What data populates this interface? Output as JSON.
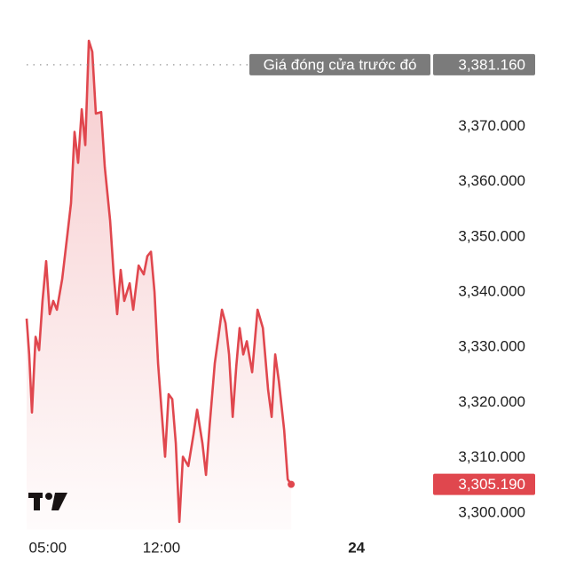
{
  "chart_data": {
    "type": "line",
    "x": [
      3.7,
      3.86,
      4.03,
      4.25,
      4.47,
      4.68,
      4.9,
      5.12,
      5.34,
      5.56,
      5.89,
      6.21,
      6.43,
      6.65,
      6.87,
      7.09,
      7.31,
      7.53,
      7.74,
      7.96,
      8.29,
      8.51,
      8.84,
      9.06,
      9.27,
      9.49,
      9.71,
      10.04,
      10.26,
      10.59,
      10.91,
      11.13,
      11.35,
      11.57,
      11.79,
      12.01,
      12.22,
      12.44,
      12.66,
      12.88,
      13.1,
      13.32,
      13.65,
      13.97,
      14.19,
      14.52,
      14.74,
      14.96,
      15.28,
      15.5,
      15.72,
      15.94,
      16.16,
      16.38,
      16.6,
      16.81,
      17.03,
      17.25,
      17.58,
      17.91,
      18.24,
      18.56,
      18.78,
      19.0,
      19.22,
      19.55,
      19.77,
      19.98
    ],
    "series": [
      {
        "color": "#e0474e",
        "values": [
          3335.2,
          3328.7,
          3318.2,
          3331.9,
          3329.5,
          3338.4,
          3345.6,
          3336.0,
          3338.4,
          3336.8,
          3342.4,
          3350.5,
          3356.1,
          3369.0,
          3363.4,
          3373.1,
          3366.6,
          3385.5,
          3383.5,
          3372.3,
          3372.6,
          3362.6,
          3352.9,
          3343.2,
          3336.0,
          3344.0,
          3338.4,
          3341.6,
          3336.8,
          3344.8,
          3343.2,
          3346.5,
          3347.3,
          3340.0,
          3327.1,
          3318.2,
          3310.2,
          3321.5,
          3320.6,
          3312.6,
          3298.4,
          3310.2,
          3308.5,
          3314.2,
          3318.7,
          3312.6,
          3306.9,
          3315.8,
          3327.1,
          3331.9,
          3336.8,
          3334.4,
          3328.7,
          3317.4,
          3326.5,
          3333.5,
          3328.7,
          3331.1,
          3325.5,
          3336.8,
          3333.5,
          3322.3,
          3317.4,
          3328.7,
          3323.9,
          3315.0,
          3306.1,
          3305.19
        ]
      }
    ],
    "xlim": [
      3.7,
      25
    ],
    "xticks": [
      {
        "value": 5,
        "label": "05:00"
      },
      {
        "value": 12,
        "label": "12:00"
      },
      {
        "value": 24,
        "label": "24"
      }
    ],
    "ylim": [
      3297,
      3386
    ],
    "yticks": [
      {
        "value": 3300,
        "label": "3,300.000"
      },
      {
        "value": 3310,
        "label": "3,310.000"
      },
      {
        "value": 3320,
        "label": "3,320.000"
      },
      {
        "value": 3330,
        "label": "3,330.000"
      },
      {
        "value": 3340,
        "label": "3,340.000"
      },
      {
        "value": 3350,
        "label": "3,350.000"
      },
      {
        "value": 3360,
        "label": "3,360.000"
      },
      {
        "value": 3370,
        "label": "3,370.000"
      }
    ],
    "previous_close": {
      "label": "Giá đóng cửa trước đó",
      "value": 3381.16,
      "value_label": "3,381.160",
      "color": "#7b7b7b"
    },
    "last_price": {
      "value": 3305.19,
      "value_label": "3,305.190",
      "color": "#e0474e"
    }
  }
}
